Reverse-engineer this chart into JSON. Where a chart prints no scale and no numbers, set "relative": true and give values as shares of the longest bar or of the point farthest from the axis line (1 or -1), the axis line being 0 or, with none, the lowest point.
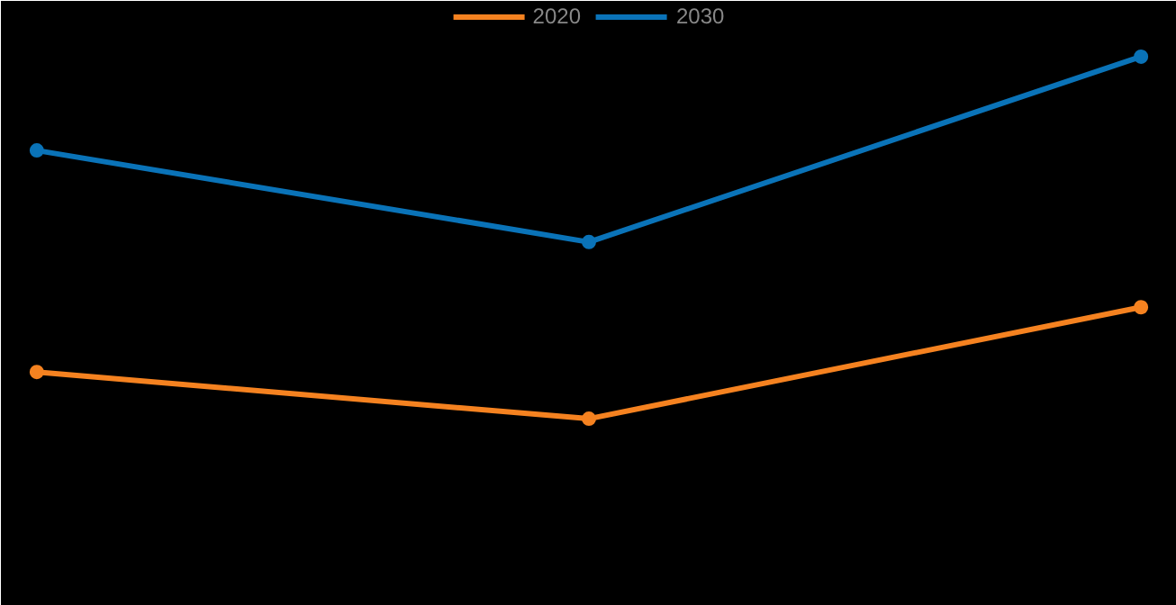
{
  "chart_data": {
    "type": "line",
    "relative": true,
    "categories": [
      null,
      null,
      null
    ],
    "series": [
      {
        "name": "2020",
        "color": "#f58220",
        "values": [
          0.129,
          0,
          0.308
        ]
      },
      {
        "name": "2030",
        "color": "#0a73b8",
        "values": [
          0.741,
          0.488,
          1
        ]
      }
    ],
    "legend": "top",
    "marker": "circle",
    "grid": false
  }
}
